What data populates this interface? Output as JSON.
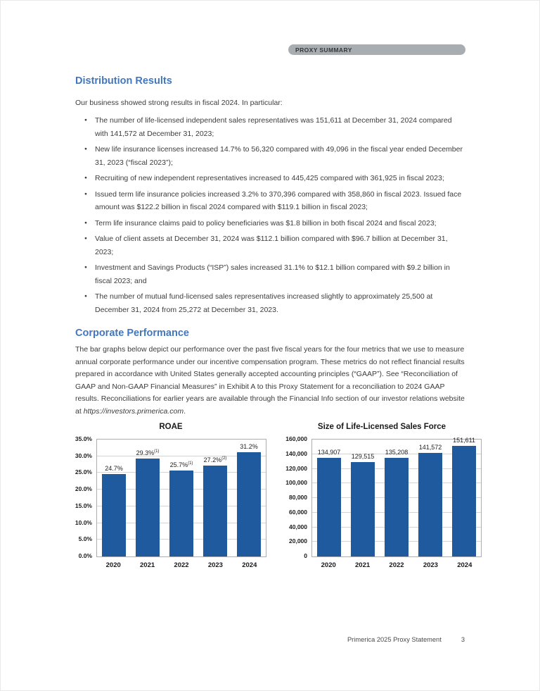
{
  "header": {
    "badge": "PROXY SUMMARY"
  },
  "colors": {
    "heading_blue": "#4377bd",
    "bar_blue": "#1f5a9e",
    "badge_gray": "#a8adb2"
  },
  "distribution": {
    "heading": "Distribution Results",
    "intro": "Our business showed strong results in fiscal 2024. In particular:",
    "bullets": [
      "The number of life-licensed independent sales representatives was 151,611 at December 31, 2024 compared with 141,572 at December 31, 2023;",
      "New life insurance licenses increased 14.7% to 56,320 compared with 49,096 in the fiscal year ended December 31, 2023 (“fiscal 2023”);",
      "Recruiting of new independent representatives increased to 445,425 compared with 361,925 in fiscal 2023;",
      "Issued term life insurance policies increased 3.2% to 370,396 compared with 358,860 in fiscal 2023. Issued face amount was $122.2 billion in fiscal 2024 compared with $119.1 billion in fiscal 2023;",
      "Term life insurance claims paid to policy beneficiaries was $1.8 billion in both fiscal 2024 and fiscal 2023;",
      "Value of client assets at December 31, 2024 was $112.1 billion compared with $96.7 billion at December 31, 2023;",
      "Investment and Savings Products (“ISP”) sales increased 31.1% to $12.1 billion compared with $9.2 billion in fiscal 2023; and",
      "The number of mutual fund-licensed sales representatives increased slightly to approximately 25,500 at December 31, 2024 from 25,272 at December 31, 2023."
    ]
  },
  "corporate": {
    "heading": "Corporate Performance",
    "paragraph": "The bar graphs below depict our performance over the past five fiscal years for the four metrics that we use to measure annual corporate performance under our incentive compensation program. These metrics do not reflect financial results prepared in accordance with United States generally accepted accounting principles (“GAAP”). See “Reconciliation of GAAP and Non-GAAP Financial Measures” in Exhibit A to this Proxy Statement for a reconciliation to 2024 GAAP results. Reconciliations for earlier years are available through the Financial Info section of our investor relations website at ",
    "link_text": "https://investors.primerica.com",
    "paragraph_suffix": "."
  },
  "chart_data": [
    {
      "type": "bar",
      "title": "ROAE",
      "categories": [
        "2020",
        "2021",
        "2022",
        "2023",
        "2024"
      ],
      "values": [
        24.7,
        29.3,
        25.7,
        27.2,
        31.2
      ],
      "labels": [
        "24.7%",
        "29.3%",
        "25.7%",
        "27.2%",
        "31.2%"
      ],
      "label_superscripts": [
        "",
        "(1)",
        "(1)",
        "(2)",
        ""
      ],
      "xlabel": "",
      "ylabel": "",
      "ylim": [
        0,
        35
      ],
      "ytick_step": 5,
      "ytick_labels": [
        "0.0%",
        "5.0%",
        "10.0%",
        "15.0%",
        "20.0%",
        "25.0%",
        "30.0%",
        "35.0%"
      ],
      "bar_color": "#1f5a9e",
      "grid": true,
      "legend": "none"
    },
    {
      "type": "bar",
      "title": "Size of Life-Licensed Sales Force",
      "categories": [
        "2020",
        "2021",
        "2022",
        "2023",
        "2024"
      ],
      "values": [
        134907,
        129515,
        135208,
        141572,
        151611
      ],
      "labels": [
        "134,907",
        "129,515",
        "135,208",
        "141,572",
        "151,611"
      ],
      "label_superscripts": [
        "",
        "",
        "",
        "",
        ""
      ],
      "xlabel": "",
      "ylabel": "",
      "ylim": [
        0,
        160000
      ],
      "ytick_step": 20000,
      "ytick_labels": [
        "0",
        "20,000",
        "40,000",
        "60,000",
        "80,000",
        "100,000",
        "120,000",
        "140,000",
        "160,000"
      ],
      "bar_color": "#1f5a9e",
      "grid": true,
      "legend": "none"
    }
  ],
  "footer": {
    "text": "Primerica 2025 Proxy Statement",
    "page_number": "3"
  }
}
